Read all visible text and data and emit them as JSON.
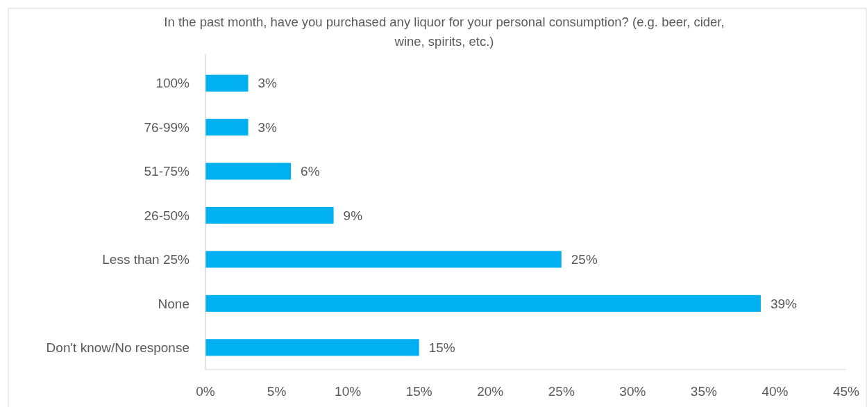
{
  "chart_data": {
    "type": "bar",
    "orientation": "horizontal",
    "title": "In the past month, have you purchased any liquor for your personal consumption?  (e.g. beer, cider, wine, spirits, etc.)",
    "categories": [
      "100%",
      "76-99%",
      "51-75%",
      "26-50%",
      "Less than 25%",
      "None",
      "Don't know/No response"
    ],
    "values": [
      3,
      3,
      6,
      9,
      25,
      39,
      15
    ],
    "value_labels": [
      "3%",
      "3%",
      "6%",
      "9%",
      "25%",
      "39%",
      "15%"
    ],
    "color": "#00b0f0",
    "xlim": [
      0,
      45
    ],
    "xticks": [
      {
        "value": 0,
        "label": "0%"
      },
      {
        "value": 5,
        "label": "5%"
      },
      {
        "value": 10,
        "label": "10%"
      },
      {
        "value": 15,
        "label": "15%"
      },
      {
        "value": 20,
        "label": "20%"
      },
      {
        "value": 25,
        "label": "25%"
      },
      {
        "value": 30,
        "label": "30%"
      },
      {
        "value": 35,
        "label": "35%"
      },
      {
        "value": 40,
        "label": "40%"
      },
      {
        "value": 45,
        "label": "45%"
      }
    ],
    "grid": false
  }
}
